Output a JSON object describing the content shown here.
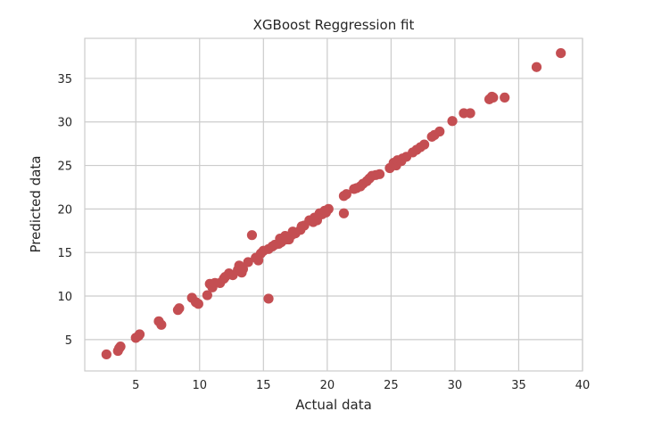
{
  "chart_data": {
    "type": "scatter",
    "title": "XGBoost Reggression fit",
    "xlabel": "Actual data",
    "ylabel": "Predicted data",
    "xlim": [
      1.0,
      40.0
    ],
    "ylim": [
      1.4,
      39.6
    ],
    "xticks": [
      5,
      10,
      15,
      20,
      25,
      30,
      35,
      40
    ],
    "yticks": [
      5,
      10,
      15,
      20,
      25,
      30,
      35
    ],
    "grid": true,
    "legend": "none",
    "colors": {
      "point": "#c44e52",
      "grid": "#cccccc",
      "text": "#262626",
      "background": "#ffffff"
    },
    "series": [
      {
        "points": [
          [
            2.7,
            3.3
          ],
          [
            3.6,
            3.7
          ],
          [
            3.7,
            4.0
          ],
          [
            3.8,
            4.2
          ],
          [
            5.0,
            5.2
          ],
          [
            5.2,
            5.4
          ],
          [
            5.3,
            5.6
          ],
          [
            6.8,
            7.1
          ],
          [
            7.0,
            6.7
          ],
          [
            8.3,
            8.4
          ],
          [
            8.4,
            8.6
          ],
          [
            9.4,
            9.8
          ],
          [
            9.7,
            9.3
          ],
          [
            9.9,
            9.1
          ],
          [
            10.6,
            10.1
          ],
          [
            10.8,
            11.4
          ],
          [
            11.0,
            11.0
          ],
          [
            11.2,
            11.5
          ],
          [
            11.6,
            11.5
          ],
          [
            11.9,
            12.0
          ],
          [
            12.0,
            12.2
          ],
          [
            12.3,
            12.6
          ],
          [
            12.6,
            12.4
          ],
          [
            13.0,
            13.0
          ],
          [
            13.1,
            13.5
          ],
          [
            13.2,
            13.2
          ],
          [
            13.3,
            12.7
          ],
          [
            13.4,
            13.1
          ],
          [
            13.8,
            13.9
          ],
          [
            14.1,
            17.0
          ],
          [
            14.4,
            14.4
          ],
          [
            14.6,
            14.1
          ],
          [
            14.8,
            14.9
          ],
          [
            15.0,
            15.2
          ],
          [
            15.4,
            9.7
          ],
          [
            15.4,
            15.4
          ],
          [
            15.7,
            15.7
          ],
          [
            15.9,
            15.9
          ],
          [
            16.2,
            16.0
          ],
          [
            16.3,
            16.6
          ],
          [
            16.4,
            16.2
          ],
          [
            16.5,
            16.5
          ],
          [
            16.7,
            16.9
          ],
          [
            16.8,
            16.5
          ],
          [
            17.0,
            16.5
          ],
          [
            17.2,
            17.0
          ],
          [
            17.3,
            17.4
          ],
          [
            17.5,
            17.2
          ],
          [
            17.9,
            17.6
          ],
          [
            18.0,
            18.0
          ],
          [
            18.2,
            18.1
          ],
          [
            18.6,
            18.7
          ],
          [
            18.9,
            18.5
          ],
          [
            19.0,
            19.0
          ],
          [
            19.2,
            18.7
          ],
          [
            19.3,
            19.2
          ],
          [
            19.4,
            19.5
          ],
          [
            19.6,
            19.4
          ],
          [
            19.8,
            19.8
          ],
          [
            19.9,
            19.6
          ],
          [
            20.1,
            20.0
          ],
          [
            21.3,
            19.5
          ],
          [
            21.3,
            21.5
          ],
          [
            21.5,
            21.7
          ],
          [
            22.1,
            22.3
          ],
          [
            22.3,
            22.4
          ],
          [
            22.6,
            22.6
          ],
          [
            22.8,
            22.9
          ],
          [
            23.1,
            23.2
          ],
          [
            23.3,
            23.5
          ],
          [
            23.5,
            23.8
          ],
          [
            23.8,
            23.9
          ],
          [
            24.1,
            24.0
          ],
          [
            24.9,
            24.7
          ],
          [
            25.2,
            25.3
          ],
          [
            25.4,
            25.0
          ],
          [
            25.5,
            25.6
          ],
          [
            25.8,
            25.5
          ],
          [
            25.9,
            25.8
          ],
          [
            26.2,
            26.0
          ],
          [
            26.7,
            26.5
          ],
          [
            27.0,
            26.8
          ],
          [
            27.3,
            27.1
          ],
          [
            27.6,
            27.4
          ],
          [
            28.2,
            28.3
          ],
          [
            28.4,
            28.5
          ],
          [
            28.8,
            28.9
          ],
          [
            29.8,
            30.1
          ],
          [
            30.7,
            31.0
          ],
          [
            31.2,
            31.0
          ],
          [
            32.7,
            32.6
          ],
          [
            32.9,
            32.9
          ],
          [
            33.0,
            32.8
          ],
          [
            33.9,
            32.8
          ],
          [
            36.4,
            36.3
          ],
          [
            38.3,
            37.9
          ]
        ]
      }
    ]
  }
}
